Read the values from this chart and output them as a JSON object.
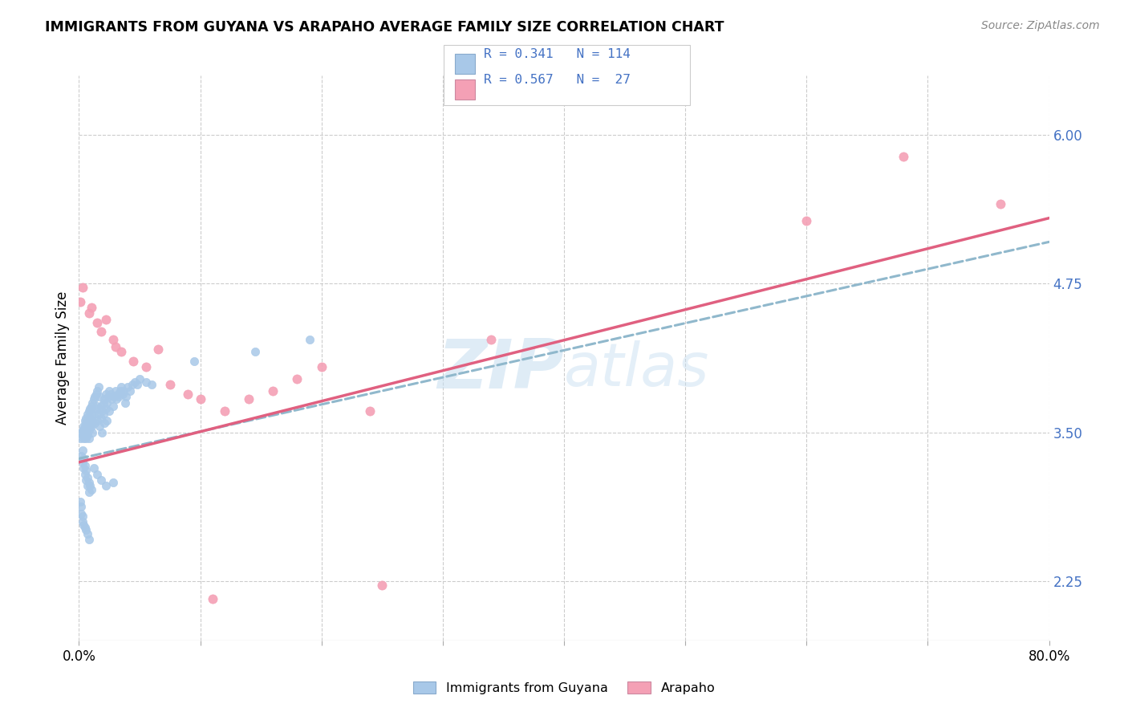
{
  "title": "IMMIGRANTS FROM GUYANA VS ARAPAHO AVERAGE FAMILY SIZE CORRELATION CHART",
  "source": "Source: ZipAtlas.com",
  "ylabel": "Average Family Size",
  "yticks_right": [
    2.25,
    3.5,
    4.75,
    6.0
  ],
  "ytick_labels_right": [
    "2.25",
    "3.50",
    "4.75",
    "6.00"
  ],
  "legend_label1": "Immigrants from Guyana",
  "legend_label2": "Arapaho",
  "color_blue": "#a8c8e8",
  "color_pink": "#f4a0b5",
  "color_blue_text": "#4472C4",
  "line_pink": "#e06080",
  "line_dashed_color": "#90b8cc",
  "watermark_color": "#d0e5f5",
  "xlim": [
    0.0,
    0.8
  ],
  "ylim": [
    1.75,
    6.5
  ],
  "blue_trend": [
    0.0,
    0.8,
    3.28,
    5.1
  ],
  "pink_trend": [
    0.0,
    0.8,
    3.25,
    5.3
  ],
  "blue_x": [
    0.001,
    0.002,
    0.003,
    0.003,
    0.004,
    0.004,
    0.004,
    0.005,
    0.005,
    0.005,
    0.006,
    0.006,
    0.006,
    0.006,
    0.007,
    0.007,
    0.007,
    0.008,
    0.008,
    0.008,
    0.008,
    0.009,
    0.009,
    0.009,
    0.01,
    0.01,
    0.01,
    0.011,
    0.011,
    0.011,
    0.012,
    0.012,
    0.013,
    0.013,
    0.014,
    0.014,
    0.015,
    0.015,
    0.015,
    0.016,
    0.016,
    0.017,
    0.017,
    0.018,
    0.018,
    0.019,
    0.019,
    0.02,
    0.02,
    0.021,
    0.021,
    0.022,
    0.022,
    0.023,
    0.023,
    0.024,
    0.025,
    0.025,
    0.026,
    0.027,
    0.028,
    0.029,
    0.03,
    0.031,
    0.032,
    0.033,
    0.034,
    0.035,
    0.036,
    0.037,
    0.038,
    0.039,
    0.04,
    0.042,
    0.044,
    0.046,
    0.048,
    0.05,
    0.055,
    0.06,
    0.002,
    0.003,
    0.004,
    0.005,
    0.006,
    0.007,
    0.008,
    0.003,
    0.004,
    0.005,
    0.006,
    0.007,
    0.008,
    0.009,
    0.01,
    0.012,
    0.015,
    0.018,
    0.022,
    0.028,
    0.001,
    0.002,
    0.002,
    0.003,
    0.003,
    0.004,
    0.005,
    0.006,
    0.007,
    0.008,
    0.095,
    0.145,
    0.19
  ],
  "blue_y": [
    3.45,
    3.5,
    3.48,
    3.52,
    3.55,
    3.5,
    3.45,
    3.6,
    3.55,
    3.48,
    3.58,
    3.52,
    3.62,
    3.45,
    3.65,
    3.55,
    3.48,
    3.68,
    3.6,
    3.52,
    3.45,
    3.7,
    3.62,
    3.55,
    3.72,
    3.65,
    3.55,
    3.75,
    3.6,
    3.5,
    3.78,
    3.65,
    3.8,
    3.58,
    3.82,
    3.7,
    3.85,
    3.72,
    3.6,
    3.88,
    3.65,
    3.8,
    3.55,
    3.72,
    3.62,
    3.68,
    3.5,
    3.75,
    3.65,
    3.78,
    3.58,
    3.82,
    3.7,
    3.75,
    3.6,
    3.8,
    3.85,
    3.68,
    3.82,
    3.78,
    3.72,
    3.8,
    3.85,
    3.78,
    3.82,
    3.8,
    3.85,
    3.88,
    3.82,
    3.85,
    3.75,
    3.8,
    3.88,
    3.85,
    3.9,
    3.92,
    3.9,
    3.95,
    3.92,
    3.9,
    3.3,
    3.25,
    3.2,
    3.15,
    3.1,
    3.05,
    3.0,
    3.35,
    3.28,
    3.22,
    3.18,
    3.12,
    3.08,
    3.05,
    3.02,
    3.2,
    3.15,
    3.1,
    3.05,
    3.08,
    2.92,
    2.88,
    2.82,
    2.8,
    2.75,
    2.72,
    2.7,
    2.68,
    2.65,
    2.6,
    4.1,
    4.18,
    4.28
  ],
  "pink_x": [
    0.001,
    0.003,
    0.008,
    0.01,
    0.015,
    0.018,
    0.022,
    0.028,
    0.03,
    0.035,
    0.045,
    0.055,
    0.065,
    0.075,
    0.09,
    0.1,
    0.12,
    0.14,
    0.16,
    0.18,
    0.2,
    0.24,
    0.34,
    0.6,
    0.68,
    0.76,
    0.11,
    0.25
  ],
  "pink_y": [
    4.6,
    4.72,
    4.5,
    4.55,
    4.42,
    4.35,
    4.45,
    4.28,
    4.22,
    4.18,
    4.1,
    4.05,
    4.2,
    3.9,
    3.82,
    3.78,
    3.68,
    3.78,
    3.85,
    3.95,
    4.05,
    3.68,
    4.28,
    5.28,
    5.82,
    5.42,
    2.1,
    2.22
  ]
}
